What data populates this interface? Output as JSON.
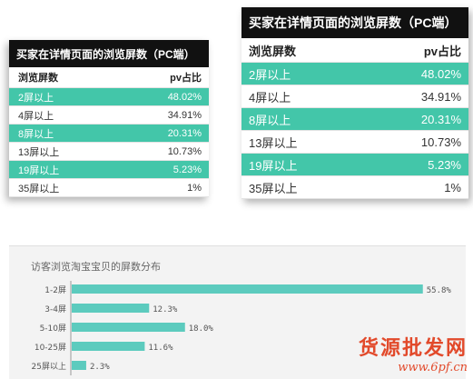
{
  "table_left": {
    "title": "买家在详情页面的浏览屏数（PC端）",
    "header": {
      "col1": "浏览屏数",
      "col2": "pv占比"
    },
    "rows": [
      {
        "label": "2屏以上",
        "value": "48.02%"
      },
      {
        "label": "4屏以上",
        "value": "34.91%"
      },
      {
        "label": "8屏以上",
        "value": "20.31%"
      },
      {
        "label": "13屏以上",
        "value": "10.73%"
      },
      {
        "label": "19屏以上",
        "value": "5.23%"
      },
      {
        "label": "35屏以上",
        "value": "1%"
      }
    ]
  },
  "table_right": {
    "title": "买家在详情页面的浏览屏数（PC端）",
    "header": {
      "col1": "浏览屏数",
      "col2": "pv占比"
    },
    "rows": [
      {
        "label": "2屏以上",
        "value": "48.02%"
      },
      {
        "label": "4屏以上",
        "value": "34.91%"
      },
      {
        "label": "8屏以上",
        "value": "20.31%"
      },
      {
        "label": "13屏以上",
        "value": "10.73%"
      },
      {
        "label": "19屏以上",
        "value": "5.23%"
      },
      {
        "label": "35屏以上",
        "value": "1%"
      }
    ]
  },
  "colors": {
    "highlight_row": "#43c6a9",
    "bar": "#5ccbbe",
    "title_bg": "#111111",
    "watermark": "#e24a2b"
  },
  "chart_data": {
    "type": "bar",
    "orientation": "horizontal",
    "title": "访客浏览淘宝宝贝的屏数分布",
    "categories": [
      "1-2屏",
      "3-4屏",
      "5-10屏",
      "10-25屏",
      "25屏以上"
    ],
    "values": [
      55.8,
      12.3,
      18.0,
      11.6,
      2.3
    ],
    "value_labels": [
      "55.8%",
      "12.3%",
      "18.0%",
      "11.6%",
      "2.3%"
    ],
    "xlim": [
      0,
      58
    ]
  },
  "watermark": {
    "line1": "货源批发网",
    "line2": "www.6pf.cn"
  }
}
